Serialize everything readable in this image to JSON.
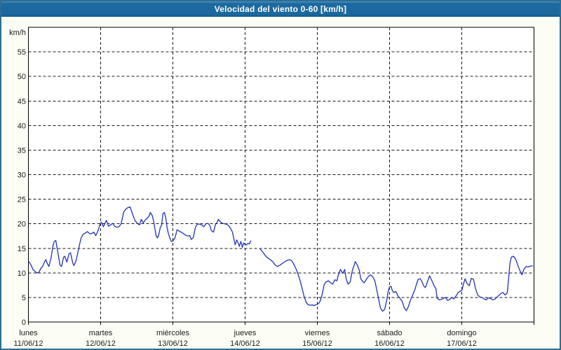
{
  "window": {
    "title": "Velocidad del viento 0-60 [km/h]"
  },
  "colors": {
    "titlebar_bg": "#1b699e",
    "titlebar_text": "#ffffff",
    "window_bg": "#fcfdf5",
    "window_border": "#2d6e93",
    "plot_bg": "#ffffff",
    "plot_border": "#000000",
    "grid": "#1a1a1a",
    "line": "#2433b3",
    "label_text": "#1a1a1a"
  },
  "chart_data": {
    "type": "line",
    "title": "Velocidad del viento 0-60 [km/h]",
    "ylabel": "km/h",
    "ylim": [
      0,
      60
    ],
    "ytick_step": 5,
    "ytick_labels": [
      "0",
      "5",
      "10",
      "15",
      "20",
      "25",
      "30",
      "35",
      "40",
      "45",
      "50",
      "55"
    ],
    "x_unit": "hours_since_start",
    "xlim": [
      0,
      168
    ],
    "grid": "dashed",
    "legend": "none",
    "days": [
      {
        "name": "lunes",
        "date": "11/06/12"
      },
      {
        "name": "martes",
        "date": "12/06/12"
      },
      {
        "name": "miércoles",
        "date": "13/06/12"
      },
      {
        "name": "jueves",
        "date": "14/06/12"
      },
      {
        "name": "viernes",
        "date": "15/06/12"
      },
      {
        "name": "sábado",
        "date": "16/06/12"
      },
      {
        "name": "domingo",
        "date": "17/06/12"
      }
    ],
    "series": [
      {
        "name": "velocidad del viento",
        "unit": "km/h",
        "color": "#2433b3",
        "segments": [
          {
            "x": [
              0,
              0.7,
              1.6,
              2.8,
              3.5,
              4,
              4.7,
              5.4,
              5.8,
              6.3,
              6.8,
              7.5,
              8.2,
              8.6,
              9.1,
              9.8,
              10.5,
              11,
              11.7,
              12.1,
              12.8,
              13.5,
              14,
              14.7,
              15.1,
              15.8,
              16.3,
              17,
              17.5,
              18.2,
              18.9,
              19.6,
              20.3,
              21,
              21.7,
              22.4,
              23.1,
              23.8,
              24.2,
              24.9,
              25.9,
              26.6,
              27.3,
              28,
              28.7,
              29.4,
              30.1,
              30.8,
              31.7,
              32.4,
              33.1,
              33.8,
              34.7,
              35.4,
              36.3,
              37,
              37.5,
              38.2,
              38.9,
              39.6,
              40.1,
              40.5,
              41.2,
              41.7,
              42.4,
              42.9,
              43.3,
              43.8,
              44.3,
              44.7,
              45.2,
              45.7,
              46.1,
              46.6,
              47.1,
              47.5,
              48,
              48.7,
              49.4,
              50.1,
              50.8,
              51.5,
              52.2,
              52.9,
              53.6,
              54.1,
              54.8,
              55.5,
              56.2,
              56.9,
              57.6,
              58.3,
              59,
              59.7,
              60.3,
              60.8,
              61.5,
              62.2,
              62.7,
              63.1,
              63.8,
              64.5,
              65.2,
              65.9,
              66.6,
              67.3,
              67.8,
              68.3,
              68.7,
              69.2,
              69.7,
              70.1,
              70.6,
              71.1,
              71.5,
              72,
              72.5,
              72.9,
              73.4,
              73.9
            ],
            "y": [
              12.4,
              11.8,
              10.6,
              10,
              10.1,
              10.8,
              11.3,
              12.3,
              12.7,
              11.9,
              11.3,
              13,
              15.6,
              16.4,
              16.6,
              14.1,
              11.6,
              11.3,
              13.2,
              13.4,
              12.2,
              13.9,
              14.1,
              12.1,
              11.5,
              12.4,
              13.8,
              15.8,
              17.1,
              17.9,
              18.1,
              18.4,
              18,
              18,
              18.3,
              17.6,
              18.5,
              19.9,
              20.3,
              19.4,
              20.7,
              19.5,
              19.8,
              20.1,
              19.5,
              19.3,
              19.4,
              20,
              22.4,
              23,
              23.3,
              23.4,
              21.8,
              20.7,
              20,
              19.8,
              20.9,
              20.2,
              20.8,
              21.2,
              21.6,
              22.3,
              21.6,
              20.2,
              17.6,
              17.1,
              17.7,
              19.2,
              19.8,
              22,
              22.3,
              21,
              19.2,
              17.8,
              16.9,
              16.4,
              16.5,
              17.1,
              18.8,
              18.5,
              18.3,
              18,
              17.7,
              17.5,
              17.6,
              16.8,
              17.2,
              19.3,
              20,
              19.9,
              19.8,
              19.4,
              20,
              20.1,
              19.6,
              18.6,
              18.3,
              19.9,
              20.3,
              20.9,
              20.4,
              20.1,
              20,
              19.9,
              19.6,
              18.9,
              18.3,
              16.9,
              15.7,
              16.7,
              16.1,
              15.4,
              16.4,
              15.2,
              16.1,
              15.8,
              15.7,
              16,
              15.9,
              16.5
            ]
          },
          {
            "x": [
              77.1,
              77.8,
              78.5,
              79.2,
              79.9,
              80.6,
              81.3,
              82,
              82.7,
              83.4,
              84.1,
              84.8,
              85.5,
              86.2,
              86.9,
              87.6,
              88.3,
              89,
              89.5,
              90.2,
              90.9,
              91.6,
              92.3,
              93,
              93.7,
              94.4,
              94.8,
              95.5,
              96,
              96.5,
              96.9,
              97.6,
              98.3,
              99,
              99.7,
              100.4,
              101.1,
              101.8,
              102.5,
              103.2,
              103.7,
              104.4,
              105.1,
              105.5,
              106.2,
              106.9,
              107.6,
              108.1,
              108.6,
              109.3,
              110,
              110.4,
              111.1,
              111.6,
              112.3,
              113,
              113.7,
              114.4,
              115.1,
              115.6,
              116.3,
              117,
              117.7,
              118.4,
              119.1,
              119.5,
              120,
              120.5,
              120.9,
              121.4,
              122.1,
              122.8,
              123.5,
              124.2,
              124.9,
              125.6,
              126.3,
              127,
              127.7,
              128.4,
              129.1,
              129.5,
              130.2,
              130.7,
              131.4,
              131.9,
              132.6,
              133.3,
              134,
              134.7,
              135.4,
              135.8,
              136.5,
              137.2,
              137.9,
              138.6,
              139.3,
              140,
              140.7,
              141.4,
              142.1,
              142.8,
              143.5,
              144,
              144.7,
              145.1,
              145.8,
              146.5,
              147.2,
              147.9,
              148.6,
              149.3,
              150,
              150.7,
              151.4,
              152.1,
              152.8,
              153.5,
              154.2,
              154.9,
              155.6,
              156.3,
              157,
              157.7,
              158.4,
              159.1,
              159.6,
              160,
              160.5,
              161.2,
              161.9,
              162.6,
              163.3,
              164,
              164.7,
              165.4,
              166.1,
              166.8,
              167.5
            ],
            "y": [
              14.8,
              14.3,
              13.7,
              13.2,
              12.9,
              12.6,
              12.2,
              11.6,
              11.3,
              11.5,
              11.8,
              12.1,
              12.4,
              12.6,
              12.7,
              12.4,
              11.6,
              10.7,
              9.9,
              8.6,
              7,
              5.2,
              4,
              3.5,
              3.4,
              3.5,
              3.3,
              3.5,
              3.6,
              3.8,
              4.2,
              5.6,
              7.7,
              8.2,
              8.4,
              8,
              7.7,
              8.6,
              8.4,
              10,
              10.7,
              9.9,
              10.7,
              9,
              7.7,
              8.1,
              10.4,
              11.3,
              12.3,
              11.6,
              10.4,
              8.9,
              8.2,
              8,
              8.7,
              9.3,
              9.6,
              9.2,
              8.4,
              7,
              4.9,
              2.8,
              2.2,
              2.6,
              4.5,
              6.2,
              7.1,
              7.3,
              6.4,
              6,
              6.2,
              5.3,
              4.8,
              4.2,
              2.9,
              2.3,
              3.2,
              4.5,
              5.5,
              6.6,
              8,
              8.7,
              8.8,
              8.3,
              7.3,
              7,
              8.2,
              9.4,
              8.5,
              7.5,
              6.8,
              4.9,
              4.5,
              4.6,
              4.8,
              5,
              4.4,
              4.6,
              5,
              4.7,
              5.3,
              6,
              6.3,
              6.4,
              8,
              8.8,
              7.8,
              7.4,
              8.9,
              8.7,
              6.8,
              5.5,
              5.1,
              5,
              4.7,
              4.5,
              4.9,
              4.8,
              4.5,
              4.6,
              5,
              5.4,
              5.8,
              6,
              5.5,
              5.9,
              9,
              12,
              13.2,
              13.4,
              12.8,
              11.6,
              10.5,
              9.6,
              10.8,
              11.3,
              11.2,
              11.4,
              11.4
            ]
          }
        ]
      }
    ]
  }
}
